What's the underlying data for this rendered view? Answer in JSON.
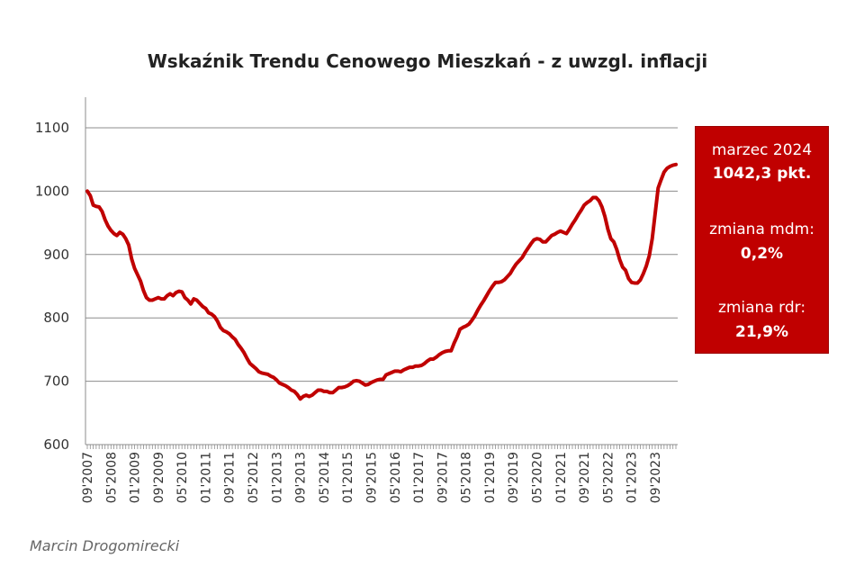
{
  "chart_data": {
    "type": "line",
    "title": "Wskaźnik Trendu Cenowego Mieszkań - z uwzgl. inflacji",
    "ylim": [
      600,
      1100
    ],
    "y_ticks": [
      "600",
      "700",
      "800",
      "900",
      "1000",
      "1100"
    ],
    "x_tick_labels": [
      "09'2007",
      "05'2008",
      "01'2009",
      "09'2009",
      "05'2010",
      "01'2011",
      "09'2011",
      "05'2012",
      "01'2013",
      "09'2013",
      "05'2014",
      "01'2015",
      "09'2015",
      "05'2016",
      "01'2017",
      "09'2017",
      "05'2018",
      "01'2019",
      "09'2019",
      "05'2020",
      "01'2021",
      "09'2021",
      "05'2022",
      "01'2023",
      "09'2023"
    ],
    "grid": "horizontal",
    "line_color": "#c00000",
    "x_months_start": "09'2007",
    "series": [
      {
        "values": [
          1000,
          993,
          978,
          976,
          975,
          968,
          955,
          945,
          938,
          933,
          930,
          935,
          932,
          925,
          915,
          893,
          878,
          868,
          858,
          843,
          832,
          828,
          828,
          830,
          832,
          830,
          830,
          835,
          838,
          835,
          840,
          842,
          841,
          832,
          828,
          822,
          830,
          828,
          823,
          818,
          815,
          808,
          806,
          802,
          795,
          785,
          780,
          778,
          775,
          770,
          766,
          758,
          752,
          745,
          736,
          728,
          724,
          720,
          715,
          713,
          712,
          711,
          708,
          706,
          702,
          697,
          695,
          693,
          690,
          686,
          684,
          679,
          672,
          676,
          678,
          676,
          678,
          682,
          686,
          686,
          684,
          684,
          682,
          682,
          686,
          690,
          690,
          691,
          693,
          696,
          700,
          701,
          700,
          697,
          694,
          695,
          698,
          700,
          702,
          703,
          703,
          710,
          712,
          714,
          716,
          716,
          715,
          718,
          720,
          722,
          722,
          724,
          724,
          725,
          728,
          732,
          735,
          735,
          738,
          742,
          745,
          747,
          748,
          748,
          760,
          770,
          782,
          785,
          787,
          790,
          796,
          803,
          812,
          820,
          827,
          835,
          843,
          850,
          856,
          856,
          857,
          860,
          865,
          870,
          878,
          885,
          890,
          895,
          903,
          910,
          917,
          923,
          925,
          924,
          920,
          920,
          925,
          930,
          932,
          935,
          937,
          935,
          933,
          940,
          948,
          955,
          963,
          970,
          978,
          982,
          985,
          990,
          990,
          985,
          975,
          960,
          940,
          925,
          920,
          908,
          892,
          880,
          875,
          862,
          856,
          855,
          855,
          860,
          870,
          882,
          898,
          925,
          965,
          1005,
          1018,
          1030,
          1036,
          1039,
          1041,
          1042
        ]
      }
    ]
  },
  "infobox": {
    "date_label": "marzec 2024",
    "value_label": "1042,3 pkt.",
    "mdm_label": "zmiana mdm:",
    "mdm_value": "0,2%",
    "rdr_label": "zmiana rdr:",
    "rdr_value": "21,9%",
    "background": "#c00000"
  },
  "author": "Marcin Drogomirecki"
}
